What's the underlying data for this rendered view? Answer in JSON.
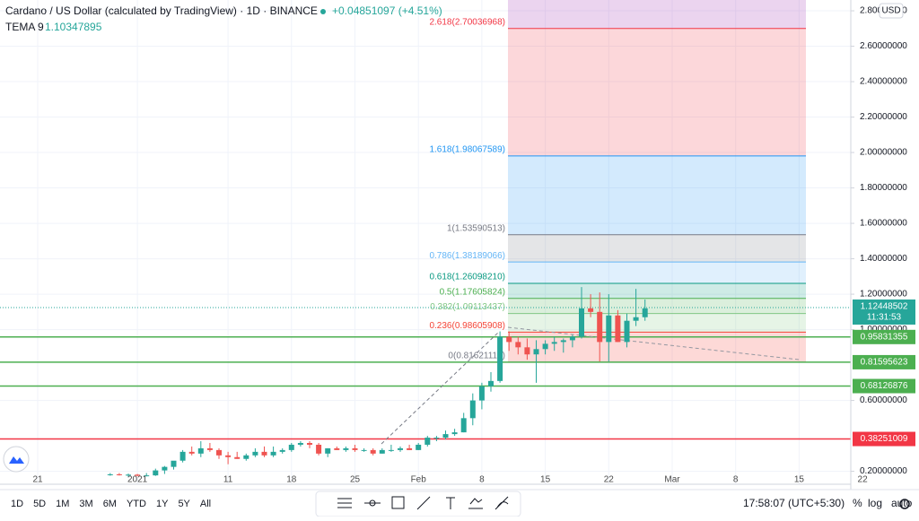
{
  "header": {
    "symbol": "Cardano / US Dollar (calculated by TradingView) · 1D · BINANCE",
    "change": "+0.04851097 (+4.51%)",
    "indicator": "TEMA 9",
    "indicator_value": "1.10347895",
    "currency": "USD"
  },
  "chart_data": {
    "type": "candlestick",
    "categories": [
      null,
      null,
      null,
      null,
      "21",
      null,
      null,
      null,
      null,
      null,
      null,
      null,
      null,
      null,
      null,
      "2021",
      null,
      null,
      null,
      null,
      null,
      null,
      null,
      null,
      null,
      "11",
      null,
      null,
      null,
      null,
      null,
      null,
      "18",
      null,
      null,
      null,
      null,
      null,
      null,
      "25",
      null,
      null,
      null,
      null,
      null,
      null,
      "Feb",
      null,
      null,
      null,
      null,
      null,
      null,
      "8",
      null,
      null,
      null,
      null,
      null,
      null,
      "15",
      null,
      null,
      null,
      null,
      null,
      null,
      "22",
      null,
      null,
      null,
      null,
      null,
      null,
      "Mar",
      null,
      null,
      null,
      null,
      null,
      null,
      "8",
      null,
      null,
      null,
      null,
      null,
      null,
      "15",
      null,
      null,
      null,
      null,
      null,
      null,
      "22"
    ],
    "open": [
      null,
      null,
      null,
      null,
      null,
      null,
      null,
      null,
      null,
      null,
      null,
      null,
      0.18,
      0.183,
      0.181,
      0.181,
      0.175,
      0.177,
      0.205,
      0.225,
      0.26,
      0.31,
      0.3,
      0.33,
      0.32,
      0.29,
      0.28,
      0.27,
      0.29,
      0.31,
      0.29,
      0.31,
      0.32,
      0.35,
      0.36,
      0.35,
      0.3,
      0.33,
      0.32,
      0.33,
      0.32,
      0.32,
      0.3,
      0.32,
      0.32,
      0.33,
      0.32,
      0.35,
      0.39,
      0.39,
      0.41,
      0.42,
      0.5,
      0.6,
      0.68,
      0.71,
      0.96,
      0.93,
      0.9,
      0.86,
      0.89,
      0.92,
      0.93,
      0.94,
      0.96,
      1.12,
      1.1,
      0.93,
      1.08,
      0.93,
      1.05,
      1.07,
      null,
      null,
      null,
      null,
      null,
      null,
      null,
      null,
      null,
      null,
      null,
      null,
      null,
      null,
      null,
      null,
      null,
      null,
      null,
      null,
      null,
      null,
      null,
      null
    ],
    "high": [
      null,
      null,
      null,
      null,
      null,
      null,
      null,
      null,
      null,
      null,
      null,
      null,
      0.19,
      0.19,
      0.187,
      0.185,
      0.19,
      0.215,
      0.23,
      0.245,
      0.32,
      0.34,
      0.37,
      0.36,
      0.33,
      0.31,
      0.31,
      0.3,
      0.33,
      0.34,
      0.34,
      0.33,
      0.36,
      0.37,
      0.37,
      0.36,
      0.33,
      0.34,
      0.34,
      0.35,
      0.33,
      0.33,
      0.33,
      0.35,
      0.34,
      0.35,
      0.36,
      0.4,
      0.4,
      0.43,
      0.44,
      0.53,
      0.64,
      0.7,
      0.76,
      0.99,
      0.99,
      0.96,
      0.95,
      0.94,
      0.94,
      0.96,
      0.95,
      0.97,
      1.24,
      1.2,
      1.21,
      1.2,
      1.11,
      1.09,
      1.23,
      1.17,
      null,
      null,
      null,
      null,
      null,
      null,
      null,
      null,
      null,
      null,
      null,
      null,
      null,
      null,
      null,
      null,
      null,
      null,
      null,
      null,
      null,
      null,
      null,
      null
    ],
    "low": [
      null,
      null,
      null,
      null,
      null,
      null,
      null,
      null,
      null,
      null,
      null,
      null,
      0.175,
      0.176,
      0.17,
      0.172,
      0.171,
      0.174,
      0.185,
      0.21,
      0.25,
      0.29,
      0.28,
      0.31,
      0.27,
      0.24,
      0.27,
      0.26,
      0.28,
      0.28,
      0.28,
      0.3,
      0.31,
      0.34,
      0.33,
      0.29,
      0.28,
      0.32,
      0.31,
      0.31,
      0.31,
      0.29,
      0.3,
      0.31,
      0.31,
      0.32,
      0.32,
      0.34,
      0.37,
      0.38,
      0.4,
      0.42,
      0.46,
      0.55,
      0.65,
      0.7,
      0.88,
      0.86,
      0.83,
      0.7,
      0.86,
      0.88,
      0.87,
      0.9,
      0.95,
      1.07,
      0.82,
      0.82,
      0.93,
      0.9,
      1.02,
      1.05,
      null,
      null,
      null,
      null,
      null,
      null,
      null,
      null,
      null,
      null,
      null,
      null,
      null,
      null,
      null,
      null,
      null,
      null,
      null,
      null,
      null,
      null,
      null,
      null
    ],
    "close": [
      null,
      null,
      null,
      null,
      null,
      null,
      null,
      null,
      null,
      null,
      null,
      null,
      0.183,
      0.181,
      0.181,
      0.175,
      0.177,
      0.205,
      0.225,
      0.26,
      0.31,
      0.3,
      0.33,
      0.32,
      0.29,
      0.28,
      0.27,
      0.29,
      0.31,
      0.29,
      0.31,
      0.32,
      0.35,
      0.36,
      0.35,
      0.3,
      0.33,
      0.32,
      0.33,
      0.32,
      0.32,
      0.3,
      0.32,
      0.32,
      0.33,
      0.32,
      0.35,
      0.39,
      0.39,
      0.41,
      0.42,
      0.5,
      0.6,
      0.68,
      0.71,
      0.96,
      0.93,
      0.9,
      0.86,
      0.89,
      0.92,
      0.93,
      0.94,
      0.96,
      1.12,
      1.1,
      0.93,
      1.08,
      0.93,
      1.05,
      1.07,
      1.12,
      null,
      null,
      null,
      null,
      null,
      null,
      null,
      null,
      null,
      null,
      null,
      null,
      null,
      null,
      null,
      null,
      null,
      null,
      null,
      null,
      null,
      null,
      null,
      null
    ],
    "up_color": "#26a69a",
    "down_color": "#ef5350",
    "ylim": [
      0.127,
      2.861
    ],
    "yticks": [
      {
        "value": 0.2,
        "label": "0.20000000"
      },
      {
        "value": 0.6,
        "label": "0.60000000"
      },
      {
        "value": 1.0,
        "label": "1.00000000"
      },
      {
        "value": 1.2,
        "label": "1.20000000"
      },
      {
        "value": 1.4,
        "label": "1.40000000"
      },
      {
        "value": 1.6,
        "label": "1.60000000"
      },
      {
        "value": 1.8,
        "label": "1.80000000"
      },
      {
        "value": 2.0,
        "label": "2.00000000"
      },
      {
        "value": 2.2,
        "label": "2.20000000"
      },
      {
        "value": 2.4,
        "label": "2.40000000"
      },
      {
        "value": 2.6,
        "label": "2.60000000"
      },
      {
        "value": 2.8,
        "label": "2.80000000"
      }
    ],
    "grid": true,
    "fib_levels": [
      {
        "label": "0(0.81621113)",
        "price": 0.81621113,
        "color": "#787b86"
      },
      {
        "label": "0.236(0.98605908)",
        "price": 0.98605908,
        "color": "#f44336"
      },
      {
        "label": "0.382(1.09113437)",
        "price": 1.09113437,
        "color": "#81c784"
      },
      {
        "label": "0.5(1.17605824)",
        "price": 1.17605824,
        "color": "#4caf50"
      },
      {
        "label": "0.618(1.26098210)",
        "price": 1.2609821,
        "color": "#089981"
      },
      {
        "label": "0.786(1.38189066)",
        "price": 1.38189066,
        "color": "#64b5f6"
      },
      {
        "label": "1(1.53590513)",
        "price": 1.53590513,
        "color": "#787b86"
      },
      {
        "label": "1.618(1.98067589)",
        "price": 1.98067589,
        "color": "#2196f3"
      },
      {
        "label": "2.618(2.70036968)",
        "price": 2.70036968,
        "color": "#f23645"
      }
    ],
    "hlines": [
      {
        "value": 0.95831355,
        "label": "0.95831355",
        "color": "#4caf50"
      },
      {
        "value": 0.81595623,
        "label": "0.81595623",
        "color": "#4caf50"
      },
      {
        "value": 0.68126876,
        "label": "0.68126876",
        "color": "#4caf50"
      },
      {
        "value": 0.38251009,
        "label": "0.38251009",
        "color": "#f23645"
      }
    ],
    "last_price": {
      "value": 1.12448502,
      "label": "1.12448502",
      "countdown": "11:31:53",
      "color": "#26a69a"
    }
  },
  "toolbar": {
    "periods": [
      "1D",
      "5D",
      "1M",
      "3M",
      "6M",
      "YTD",
      "1Y",
      "5Y",
      "All"
    ],
    "time": "17:58:07 (UTC+5:30)",
    "options": [
      "%",
      "log",
      "auto"
    ]
  }
}
